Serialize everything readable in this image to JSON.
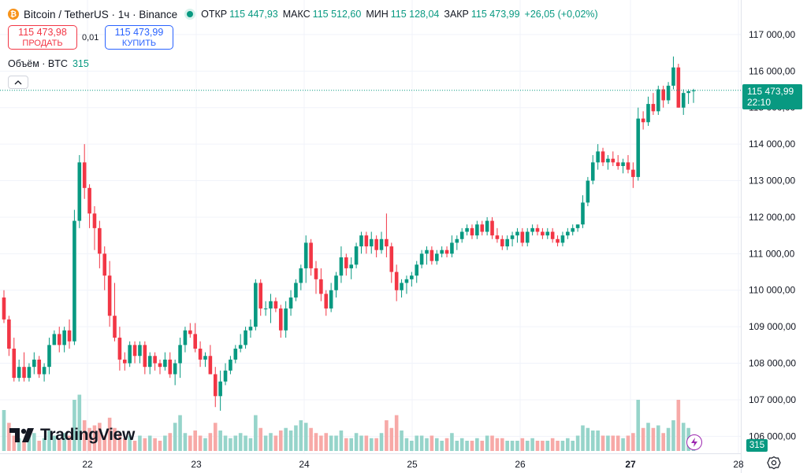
{
  "header": {
    "coin_icon": "bitcoin-icon",
    "symbol_line": "Bitcoin / TetherUS · 1ч · Binance",
    "ohlc": [
      {
        "label": "ОТКР",
        "value": "115 447,93"
      },
      {
        "label": "МАКС",
        "value": "115 512,60"
      },
      {
        "label": "МИН",
        "value": "115 128,04"
      },
      {
        "label": "ЗАКР",
        "value": "115 473,99"
      }
    ],
    "change": "+26,05 (+0,02%)"
  },
  "trade": {
    "sell_price": "115 473,98",
    "sell_label": "ПРОДАТЬ",
    "spread": "0,01",
    "buy_price": "115 473,99",
    "buy_label": "КУПИТЬ"
  },
  "volume_legend": {
    "label": "Объём · BTC",
    "value": "315"
  },
  "price_tag": {
    "price": "115 473,99",
    "countdown": "22:10"
  },
  "volume_tag": "315",
  "logo_text": "TradingView",
  "colors": {
    "up": "#089981",
    "down": "#f23645",
    "up_vol": "#96d4ca",
    "down_vol": "#f7a9a7",
    "grid": "#f0f3fa"
  },
  "chart_data": {
    "type": "candlestick",
    "title": "Bitcoin / TetherUS · 1ч · Binance",
    "ylim": [
      105900,
      117300
    ],
    "y_ticks": [
      106000,
      107000,
      108000,
      109000,
      110000,
      111000,
      112000,
      113000,
      114000,
      115000,
      116000,
      117000
    ],
    "y_tick_labels": [
      "106 000,00",
      "107 000,00",
      "108 000,00",
      "109 000,00",
      "110 000,00",
      "111 000,00",
      "112 000,00",
      "113 000,00",
      "114 000,00",
      "115 000,00",
      "116 000,00",
      "117 000,00"
    ],
    "x_tick_labels": [
      "22",
      "23",
      "24",
      "25",
      "26",
      "27",
      "28"
    ],
    "current_price": 115473.99,
    "candles": [
      [
        109800,
        110000,
        109100,
        109200
      ],
      [
        109200,
        109300,
        108200,
        108400
      ],
      [
        108400,
        108700,
        107500,
        107600
      ],
      [
        107600,
        108100,
        107500,
        107900
      ],
      [
        107900,
        108300,
        107500,
        107600
      ],
      [
        107600,
        108000,
        107500,
        107900
      ],
      [
        107900,
        108300,
        107700,
        108100
      ],
      [
        108100,
        108200,
        107600,
        107700
      ],
      [
        107700,
        108000,
        107500,
        107900
      ],
      [
        107900,
        108700,
        107700,
        108500
      ],
      [
        108500,
        108900,
        108500,
        108800
      ],
      [
        108800,
        109000,
        108300,
        108500
      ],
      [
        108500,
        109000,
        108300,
        108900
      ],
      [
        108900,
        109200,
        108400,
        108600
      ],
      [
        108600,
        112200,
        108500,
        111900
      ],
      [
        111900,
        113700,
        111700,
        113500
      ],
      [
        113500,
        114000,
        112500,
        112800
      ],
      [
        112800,
        112900,
        111700,
        112100
      ],
      [
        112100,
        112300,
        111100,
        111700
      ],
      [
        111700,
        111900,
        110600,
        111000
      ],
      [
        111000,
        111200,
        110000,
        110400
      ],
      [
        110400,
        110800,
        109000,
        109300
      ],
      [
        109300,
        110200,
        108600,
        108700
      ],
      [
        108700,
        109000,
        107800,
        108100
      ],
      [
        108100,
        108300,
        107800,
        108000
      ],
      [
        108000,
        108600,
        107900,
        108500
      ],
      [
        108500,
        108600,
        108000,
        108200
      ],
      [
        108200,
        108600,
        108000,
        108500
      ],
      [
        108500,
        108600,
        107700,
        107900
      ],
      [
        107900,
        108300,
        107700,
        108200
      ],
      [
        108200,
        108300,
        107800,
        108000
      ],
      [
        108000,
        108100,
        107700,
        107900
      ],
      [
        107900,
        108300,
        107800,
        108100
      ],
      [
        108100,
        108300,
        107600,
        107700
      ],
      [
        107700,
        108100,
        107400,
        108000
      ],
      [
        108000,
        108700,
        107600,
        108500
      ],
      [
        108500,
        109000,
        108300,
        108900
      ],
      [
        108900,
        109100,
        108700,
        108800
      ],
      [
        108800,
        109100,
        108300,
        108400
      ],
      [
        108400,
        108600,
        107900,
        108100
      ],
      [
        108100,
        108300,
        107900,
        108200
      ],
      [
        108200,
        108500,
        107700,
        107700
      ],
      [
        107700,
        107900,
        106800,
        107100
      ],
      [
        107100,
        107800,
        106700,
        107500
      ],
      [
        107500,
        108000,
        107400,
        107800
      ],
      [
        107800,
        108200,
        107700,
        108100
      ],
      [
        108100,
        108500,
        108000,
        108400
      ],
      [
        108400,
        108800,
        108300,
        108500
      ],
      [
        108500,
        109000,
        108400,
        108900
      ],
      [
        108900,
        109200,
        108700,
        109000
      ],
      [
        109000,
        110300,
        108900,
        110200
      ],
      [
        110200,
        110300,
        109300,
        109500
      ],
      [
        109500,
        109700,
        109300,
        109500
      ],
      [
        109500,
        109900,
        109100,
        109700
      ],
      [
        109700,
        109800,
        109400,
        109500
      ],
      [
        109500,
        109600,
        108700,
        108900
      ],
      [
        108900,
        109700,
        108700,
        109500
      ],
      [
        109500,
        110000,
        109300,
        109800
      ],
      [
        109800,
        110300,
        109700,
        110200
      ],
      [
        110200,
        110700,
        110000,
        110600
      ],
      [
        110600,
        111500,
        110200,
        111300
      ],
      [
        111300,
        111400,
        110400,
        110600
      ],
      [
        110600,
        110800,
        109900,
        110300
      ],
      [
        110300,
        110600,
        109700,
        109900
      ],
      [
        109900,
        110000,
        109300,
        109500
      ],
      [
        109500,
        110200,
        109400,
        110000
      ],
      [
        110000,
        110500,
        109800,
        110400
      ],
      [
        110400,
        111200,
        110200,
        110900
      ],
      [
        110900,
        111000,
        110400,
        110600
      ],
      [
        110600,
        110900,
        110300,
        110700
      ],
      [
        110700,
        111300,
        110600,
        111200
      ],
      [
        111200,
        111600,
        111000,
        111500
      ],
      [
        111500,
        111600,
        111000,
        111200
      ],
      [
        111200,
        111600,
        111000,
        111400
      ],
      [
        111400,
        111500,
        110900,
        111100
      ],
      [
        111100,
        111600,
        111000,
        111400
      ],
      [
        111400,
        112100,
        110900,
        111200
      ],
      [
        111200,
        111300,
        110200,
        110500
      ],
      [
        110500,
        110700,
        109700,
        110000
      ],
      [
        110000,
        110300,
        109800,
        110200
      ],
      [
        110200,
        110400,
        109900,
        110300
      ],
      [
        110300,
        110500,
        110100,
        110400
      ],
      [
        110400,
        110800,
        110200,
        110700
      ],
      [
        110700,
        111100,
        110600,
        111000
      ],
      [
        111000,
        111200,
        110700,
        111100
      ],
      [
        111100,
        111200,
        110700,
        110800
      ],
      [
        110800,
        111100,
        110700,
        111000
      ],
      [
        111000,
        111200,
        110900,
        111100
      ],
      [
        111100,
        111200,
        110900,
        111000
      ],
      [
        111000,
        111500,
        110900,
        111300
      ],
      [
        111300,
        111500,
        111100,
        111400
      ],
      [
        111400,
        111700,
        111300,
        111600
      ],
      [
        111600,
        111800,
        111500,
        111700
      ],
      [
        111700,
        111800,
        111400,
        111500
      ],
      [
        111500,
        111900,
        111400,
        111800
      ],
      [
        111800,
        111900,
        111500,
        111600
      ],
      [
        111600,
        112000,
        111500,
        111900
      ],
      [
        111900,
        112000,
        111400,
        111500
      ],
      [
        111500,
        111700,
        111300,
        111400
      ],
      [
        111400,
        111500,
        111100,
        111200
      ],
      [
        111200,
        111500,
        111100,
        111400
      ],
      [
        111400,
        111600,
        111200,
        111500
      ],
      [
        111500,
        111700,
        111300,
        111600
      ],
      [
        111600,
        111700,
        111200,
        111300
      ],
      [
        111300,
        111700,
        111200,
        111600
      ],
      [
        111600,
        111800,
        111500,
        111700
      ],
      [
        111700,
        111800,
        111500,
        111600
      ],
      [
        111600,
        111700,
        111400,
        111500
      ],
      [
        111500,
        111700,
        111400,
        111600
      ],
      [
        111600,
        111700,
        111300,
        111400
      ],
      [
        111400,
        111500,
        111200,
        111300
      ],
      [
        111300,
        111600,
        111200,
        111500
      ],
      [
        111500,
        111700,
        111400,
        111600
      ],
      [
        111600,
        111800,
        111500,
        111700
      ],
      [
        111700,
        111800,
        111600,
        111800
      ],
      [
        111800,
        112600,
        111700,
        112400
      ],
      [
        112400,
        113100,
        112300,
        113000
      ],
      [
        113000,
        113700,
        112900,
        113500
      ],
      [
        113500,
        114000,
        113300,
        113800
      ],
      [
        113800,
        113900,
        113400,
        113500
      ],
      [
        113500,
        113700,
        113300,
        113600
      ],
      [
        113600,
        113800,
        113400,
        113500
      ],
      [
        113500,
        113700,
        113300,
        113400
      ],
      [
        113400,
        113600,
        113200,
        113500
      ],
      [
        113500,
        113700,
        113200,
        113300
      ],
      [
        113300,
        113500,
        112800,
        113100
      ],
      [
        113100,
        115000,
        113000,
        114700
      ],
      [
        114700,
        114900,
        114400,
        114600
      ],
      [
        114600,
        115300,
        114500,
        115100
      ],
      [
        115100,
        115400,
        114800,
        114900
      ],
      [
        114900,
        115600,
        114800,
        115500
      ],
      [
        115500,
        115600,
        115000,
        115200
      ],
      [
        115200,
        115700,
        115100,
        115600
      ],
      [
        115600,
        116400,
        115500,
        116100
      ],
      [
        116100,
        116200,
        115000,
        115000
      ],
      [
        115000,
        115500,
        114800,
        115400
      ],
      [
        115400,
        115500,
        115100,
        115450
      ],
      [
        115448,
        115513,
        115128,
        115474
      ]
    ],
    "volumes": [
      [
        0.8,
        1
      ],
      [
        0.55,
        0
      ],
      [
        0.3,
        0
      ],
      [
        0.25,
        1
      ],
      [
        0.2,
        0
      ],
      [
        0.3,
        1
      ],
      [
        0.35,
        1
      ],
      [
        0.2,
        0
      ],
      [
        0.25,
        1
      ],
      [
        0.4,
        1
      ],
      [
        0.3,
        1
      ],
      [
        0.25,
        0
      ],
      [
        0.35,
        1
      ],
      [
        0.3,
        0
      ],
      [
        1.0,
        1
      ],
      [
        1.1,
        1
      ],
      [
        0.6,
        0
      ],
      [
        0.45,
        0
      ],
      [
        0.5,
        0
      ],
      [
        0.55,
        0
      ],
      [
        0.3,
        0
      ],
      [
        0.65,
        0
      ],
      [
        0.45,
        0
      ],
      [
        0.35,
        0
      ],
      [
        0.25,
        0
      ],
      [
        0.3,
        1
      ],
      [
        0.2,
        0
      ],
      [
        0.3,
        1
      ],
      [
        0.25,
        0
      ],
      [
        0.3,
        1
      ],
      [
        0.25,
        0
      ],
      [
        0.2,
        0
      ],
      [
        0.3,
        1
      ],
      [
        0.35,
        0
      ],
      [
        0.55,
        1
      ],
      [
        0.7,
        1
      ],
      [
        0.35,
        1
      ],
      [
        0.3,
        0
      ],
      [
        0.4,
        0
      ],
      [
        0.3,
        0
      ],
      [
        0.25,
        1
      ],
      [
        0.35,
        0
      ],
      [
        0.55,
        0
      ],
      [
        0.4,
        1
      ],
      [
        0.3,
        1
      ],
      [
        0.25,
        1
      ],
      [
        0.3,
        1
      ],
      [
        0.35,
        1
      ],
      [
        0.3,
        1
      ],
      [
        0.25,
        1
      ],
      [
        0.7,
        1
      ],
      [
        0.45,
        0
      ],
      [
        0.3,
        1
      ],
      [
        0.35,
        1
      ],
      [
        0.3,
        0
      ],
      [
        0.4,
        0
      ],
      [
        0.45,
        1
      ],
      [
        0.4,
        1
      ],
      [
        0.5,
        1
      ],
      [
        0.6,
        1
      ],
      [
        0.55,
        1
      ],
      [
        0.45,
        0
      ],
      [
        0.35,
        0
      ],
      [
        0.3,
        0
      ],
      [
        0.35,
        0
      ],
      [
        0.3,
        1
      ],
      [
        0.3,
        1
      ],
      [
        0.4,
        1
      ],
      [
        0.25,
        0
      ],
      [
        0.25,
        1
      ],
      [
        0.35,
        1
      ],
      [
        0.3,
        1
      ],
      [
        0.3,
        0
      ],
      [
        0.25,
        1
      ],
      [
        0.25,
        0
      ],
      [
        0.35,
        1
      ],
      [
        0.6,
        0
      ],
      [
        0.45,
        0
      ],
      [
        0.7,
        0
      ],
      [
        0.4,
        1
      ],
      [
        0.25,
        1
      ],
      [
        0.2,
        1
      ],
      [
        0.3,
        1
      ],
      [
        0.3,
        1
      ],
      [
        0.25,
        1
      ],
      [
        0.3,
        0
      ],
      [
        0.25,
        1
      ],
      [
        0.2,
        1
      ],
      [
        0.25,
        0
      ],
      [
        0.35,
        1
      ],
      [
        0.2,
        1
      ],
      [
        0.25,
        1
      ],
      [
        0.2,
        1
      ],
      [
        0.2,
        0
      ],
      [
        0.25,
        1
      ],
      [
        0.2,
        0
      ],
      [
        0.3,
        1
      ],
      [
        0.3,
        0
      ],
      [
        0.25,
        0
      ],
      [
        0.25,
        0
      ],
      [
        0.2,
        1
      ],
      [
        0.2,
        1
      ],
      [
        0.2,
        1
      ],
      [
        0.25,
        0
      ],
      [
        0.2,
        1
      ],
      [
        0.25,
        1
      ],
      [
        0.2,
        0
      ],
      [
        0.2,
        0
      ],
      [
        0.2,
        1
      ],
      [
        0.25,
        0
      ],
      [
        0.2,
        0
      ],
      [
        0.2,
        1
      ],
      [
        0.25,
        1
      ],
      [
        0.2,
        1
      ],
      [
        0.3,
        1
      ],
      [
        0.5,
        1
      ],
      [
        0.45,
        1
      ],
      [
        0.4,
        1
      ],
      [
        0.4,
        1
      ],
      [
        0.3,
        0
      ],
      [
        0.3,
        1
      ],
      [
        0.3,
        0
      ],
      [
        0.3,
        0
      ],
      [
        0.25,
        1
      ],
      [
        0.3,
        0
      ],
      [
        0.35,
        0
      ],
      [
        1.0,
        1
      ],
      [
        0.45,
        0
      ],
      [
        0.55,
        1
      ],
      [
        0.45,
        0
      ],
      [
        0.5,
        1
      ],
      [
        0.35,
        0
      ],
      [
        0.45,
        1
      ],
      [
        0.6,
        1
      ],
      [
        1.0,
        0
      ],
      [
        0.55,
        1
      ],
      [
        0.45,
        1
      ],
      [
        0.3,
        1
      ]
    ]
  }
}
